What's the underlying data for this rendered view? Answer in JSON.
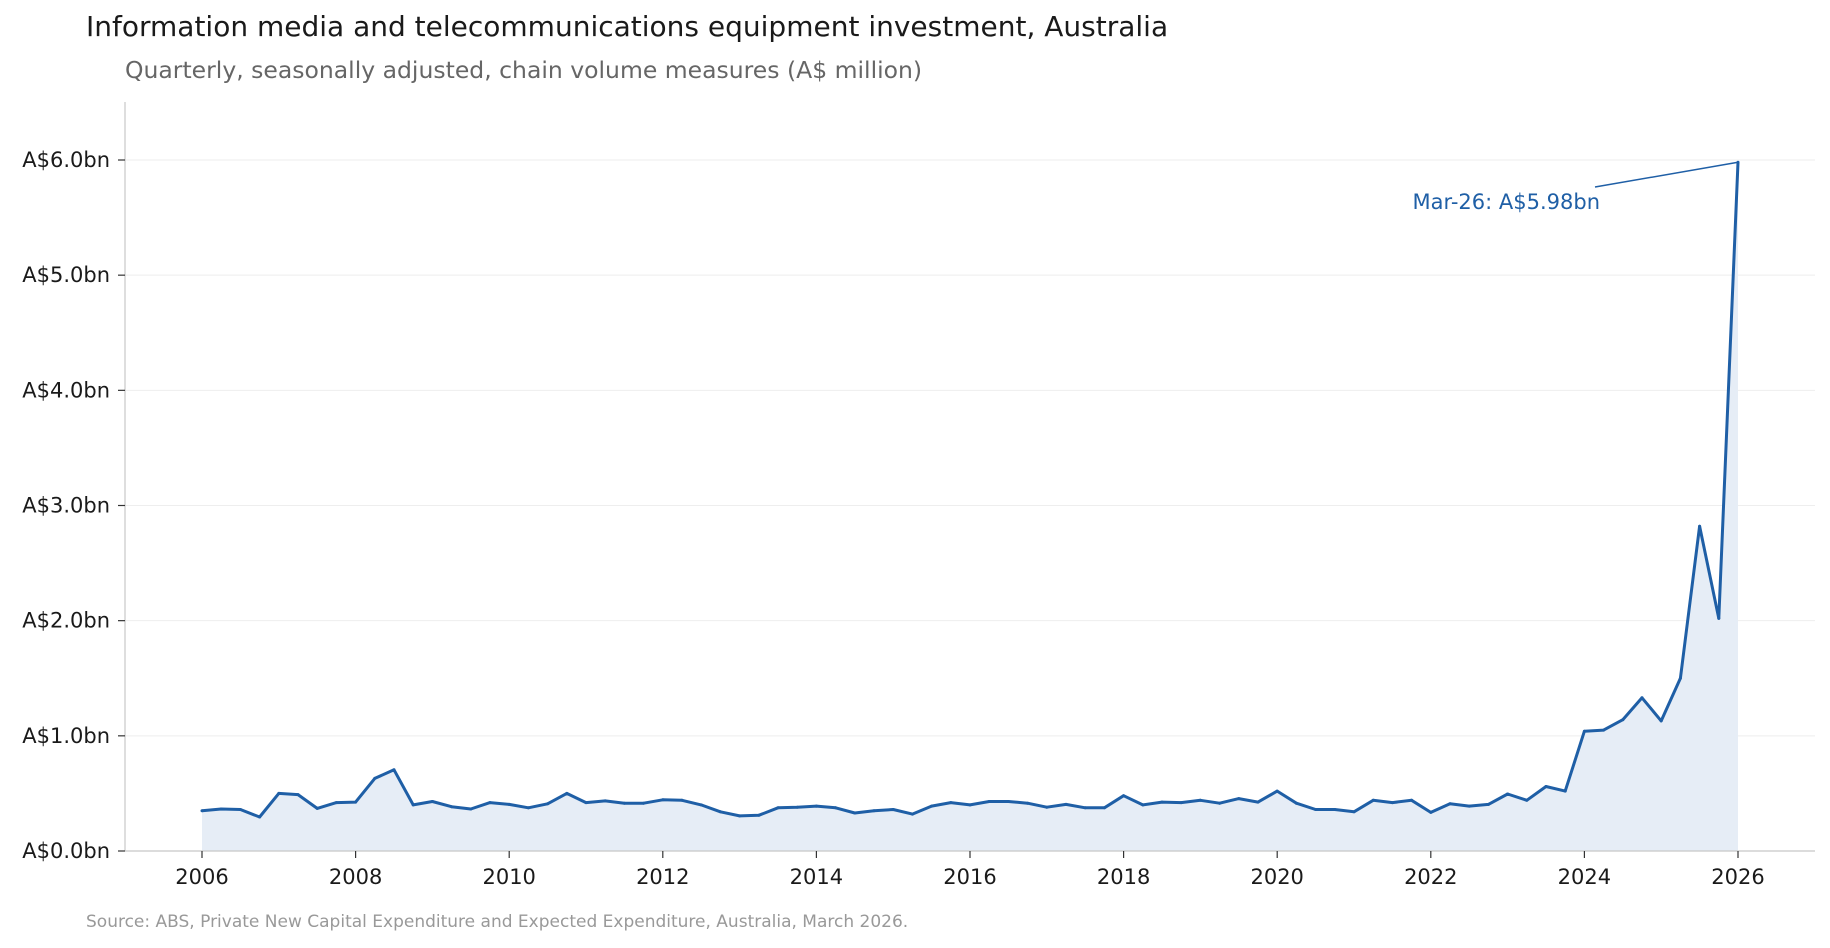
{
  "title": "Information media and telecommunications equipment investment, Australia",
  "subtitle": "Quarterly, seasonally adjusted, chain volume measures (A$ million)",
  "source": "Source: ABS, Private New Capital Expenditure and Expected Expenditure, Australia, March 2026.",
  "colors": {
    "line": "#1f5fa6",
    "fill": "#e6edf6",
    "grid": "#eeeeee",
    "axis": "#c8c8c8"
  },
  "chart_data": {
    "type": "area",
    "x_start": "2006-Q1",
    "frequency": "quarterly",
    "x_tick_labels": [
      "2006",
      "2008",
      "2010",
      "2012",
      "2014",
      "2016",
      "2018",
      "2020",
      "2022",
      "2024",
      "2026"
    ],
    "y_tick_labels": [
      "A$0.0bn",
      "A$1.0bn",
      "A$2.0bn",
      "A$3.0bn",
      "A$4.0bn",
      "A$5.0bn",
      "A$6.0bn"
    ],
    "ylim": [
      0,
      6500
    ],
    "xlim": [
      "2005-Q1",
      "2026-Q4"
    ],
    "grid": "horizontal",
    "series": [
      {
        "values": [
          350,
          365,
          360,
          295,
          500,
          490,
          370,
          420,
          425,
          630,
          705,
          400,
          430,
          385,
          365,
          420,
          405,
          375,
          410,
          500,
          420,
          435,
          415,
          415,
          445,
          440,
          400,
          340,
          305,
          310,
          375,
          380,
          390,
          375,
          330,
          350,
          360,
          320,
          390,
          420,
          400,
          430,
          430,
          415,
          380,
          405,
          375,
          375,
          480,
          400,
          425,
          420,
          440,
          415,
          455,
          425,
          520,
          415,
          360,
          360,
          340,
          440,
          420,
          440,
          335,
          410,
          390,
          405,
          495,
          440,
          560,
          520,
          1040,
          1050,
          1140,
          1330,
          1130,
          1500,
          2820,
          2020,
          5980
        ]
      }
    ],
    "annotation": {
      "label": "Mar-26: A$5.98bn",
      "x": "2026-Q1",
      "y": 5980
    }
  }
}
